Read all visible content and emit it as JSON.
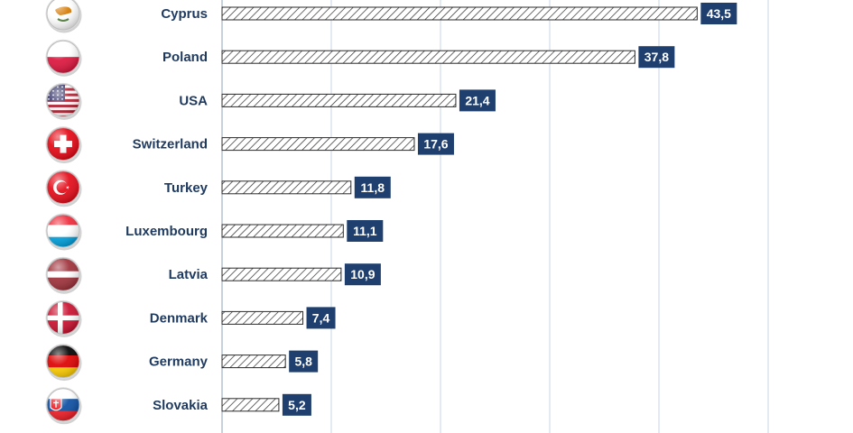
{
  "chart_data": {
    "type": "bar",
    "orientation": "horizontal",
    "categories": [
      "Cyprus",
      "Poland",
      "USA",
      "Switzerland",
      "Turkey",
      "Luxembourg",
      "Latvia",
      "Denmark",
      "Germany",
      "Slovakia"
    ],
    "values": [
      43.5,
      37.8,
      21.4,
      17.6,
      11.8,
      11.1,
      10.9,
      7.4,
      5.8,
      5.2
    ],
    "value_labels": [
      "43,5",
      "37,8",
      "21,4",
      "17,6",
      "11,8",
      "11,1",
      "10,9",
      "7,4",
      "5,8",
      "5,2"
    ],
    "flags": [
      "cyprus-flag-icon",
      "poland-flag-icon",
      "usa-flag-icon",
      "switzerland-flag-icon",
      "turkey-flag-icon",
      "luxembourg-flag-icon",
      "latvia-flag-icon",
      "denmark-flag-icon",
      "germany-flag-icon",
      "slovakia-flag-icon"
    ],
    "xlim": [
      0,
      50
    ],
    "grid": true,
    "colors": {
      "label_box": "#1f3f6e",
      "label_text": "#1f3a5f",
      "bar_hatch": "#2b2b2b",
      "grid": "#c9d6e3"
    }
  }
}
